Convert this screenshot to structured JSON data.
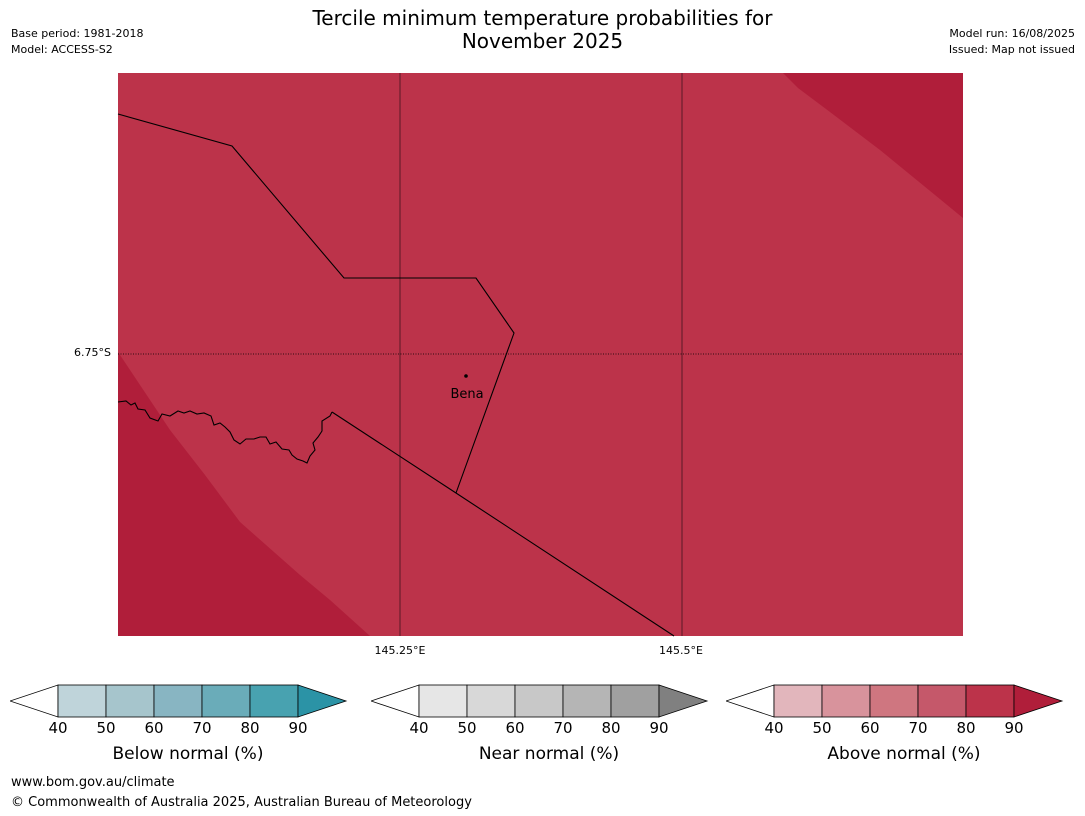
{
  "header": {
    "title_line1": "Tercile minimum temperature probabilities for",
    "title_line2": "November 2025",
    "base_period": "Base period: 1981-2018",
    "model": "Model: ACCESS-S2",
    "model_run": "Model run: 16/08/2025",
    "issued": "Issued: Map not issued"
  },
  "map": {
    "lat_label": "6.75°S",
    "lon_labels": [
      "145.25°E",
      "145.5°E"
    ],
    "place_name": "Bena",
    "fill_colors": {
      "band_80_90": "#bc334a",
      "band_over_90": "#b01e3a"
    }
  },
  "colorbars": [
    {
      "title": "Below normal (%)",
      "ticks": [
        "40",
        "50",
        "60",
        "70",
        "80",
        "90"
      ],
      "colors": [
        "#bfd4da",
        "#a6c5cc",
        "#88b5c2",
        "#6aacb9",
        "#48a2b0"
      ],
      "extend_color": "#2b93a6"
    },
    {
      "title": "Near normal (%)",
      "ticks": [
        "40",
        "50",
        "60",
        "70",
        "80",
        "90"
      ],
      "colors": [
        "#e6e6e6",
        "#d8d8d8",
        "#c8c8c8",
        "#b5b5b5",
        "#a0a0a0"
      ],
      "extend_color": "#808080"
    },
    {
      "title": "Above normal (%)",
      "ticks": [
        "40",
        "50",
        "60",
        "70",
        "80",
        "90"
      ],
      "colors": [
        "#e2b6bc",
        "#d8939c",
        "#cf7680",
        "#c5586a",
        "#bc334a"
      ],
      "extend_color": "#b01e3a"
    }
  ],
  "footer": {
    "website": "www.bom.gov.au/climate",
    "copyright": "© Commonwealth of Australia 2025, Australian Bureau of Meteorology"
  }
}
